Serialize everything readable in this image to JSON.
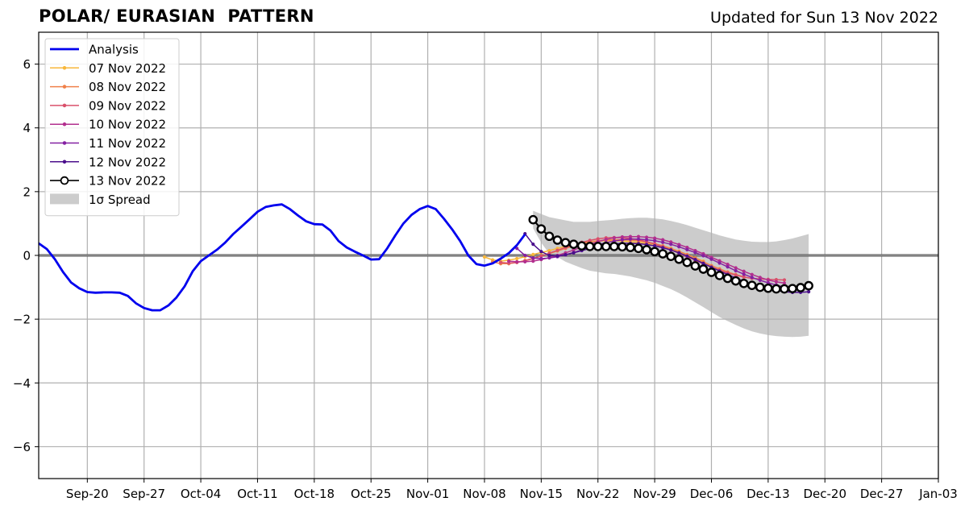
{
  "chart_data": {
    "type": "line",
    "title": "POLAR/ EURASIAN  PATTERN",
    "subtitle": "Updated for Sun 13 Nov 2022",
    "xlabel": "",
    "ylabel": "",
    "xlim": [
      "2022-09-14",
      "2023-01-03"
    ],
    "ylim": [
      -7,
      7
    ],
    "x_ticks": [
      "2022-09-20",
      "2022-09-27",
      "2022-10-04",
      "2022-10-11",
      "2022-10-18",
      "2022-10-25",
      "2022-11-01",
      "2022-11-08",
      "2022-11-15",
      "2022-11-22",
      "2022-11-29",
      "2022-12-06",
      "2022-12-13",
      "2022-12-20",
      "2022-12-27",
      "2023-01-03"
    ],
    "x_tick_labels": [
      "Sep-20",
      "Sep-27",
      "Oct-04",
      "Oct-11",
      "Oct-18",
      "Oct-25",
      "Nov-01",
      "Nov-08",
      "Nov-15",
      "Nov-22",
      "Nov-29",
      "Dec-06",
      "Dec-13",
      "Dec-20",
      "Dec-27",
      "Jan-03"
    ],
    "y_ticks": [
      -6,
      -4,
      -2,
      0,
      2,
      4,
      6
    ],
    "y_tick_labels": [
      "−6",
      "−4",
      "−2",
      "0",
      "2",
      "4",
      "6"
    ],
    "grid": true,
    "legend_position": "top-left",
    "zero_line": true,
    "analysis": {
      "name": "Analysis",
      "color": "#0000ee",
      "start_date": "2022-09-14",
      "values": [
        0.38,
        0.2,
        -0.12,
        -0.52,
        -0.85,
        -1.03,
        -1.15,
        -1.17,
        -1.16,
        -1.16,
        -1.17,
        -1.27,
        -1.5,
        -1.65,
        -1.72,
        -1.72,
        -1.57,
        -1.32,
        -0.97,
        -0.5,
        -0.18,
        0.0,
        0.18,
        0.4,
        0.67,
        0.9,
        1.13,
        1.37,
        1.52,
        1.57,
        1.6,
        1.45,
        1.25,
        1.07,
        0.98,
        0.97,
        0.78,
        0.45,
        0.25,
        0.12,
        0.0,
        -0.13,
        -0.12,
        0.22,
        0.63,
        1.0,
        1.27,
        1.45,
        1.55,
        1.45,
        1.15,
        0.82,
        0.45,
        0.0,
        -0.27,
        -0.32,
        -0.25,
        -0.1,
        0.07,
        0.32,
        0.66
      ]
    },
    "forecasts": [
      {
        "name": "07 Nov 2022",
        "color": "#f8b73a",
        "start_date": "2022-11-08",
        "values": [
          -0.05,
          -0.14,
          -0.18,
          -0.15,
          -0.1,
          -0.04,
          0.03,
          0.09,
          0.15,
          0.22,
          0.28,
          0.34,
          0.39,
          0.43,
          0.45,
          0.46,
          0.46,
          0.45,
          0.43,
          0.41,
          0.38,
          0.34,
          0.28,
          0.2,
          0.12,
          0.02,
          -0.08,
          -0.18
        ]
      },
      {
        "name": "08 Nov 2022",
        "color": "#f0804a",
        "start_date": "2022-11-09",
        "values": [
          -0.2,
          -0.26,
          -0.26,
          -0.22,
          -0.16,
          -0.09,
          -0.02,
          0.06,
          0.14,
          0.22,
          0.3,
          0.37,
          0.42,
          0.46,
          0.48,
          0.49,
          0.49,
          0.48,
          0.46,
          0.42,
          0.37,
          0.3,
          0.22,
          0.13,
          0.03,
          -0.08,
          -0.2,
          -0.32,
          -0.42,
          -0.52,
          -0.6,
          -0.67
        ]
      },
      {
        "name": "09 Nov 2022",
        "color": "#d9506b",
        "start_date": "2022-11-10",
        "values": [
          -0.22,
          -0.24,
          -0.22,
          -0.17,
          -0.1,
          -0.02,
          0.07,
          0.16,
          0.25,
          0.33,
          0.41,
          0.47,
          0.52,
          0.55,
          0.56,
          0.55,
          0.53,
          0.49,
          0.43,
          0.36,
          0.27,
          0.17,
          0.07,
          -0.04,
          -0.15,
          -0.26,
          -0.37,
          -0.46,
          -0.55,
          -0.62,
          -0.68,
          -0.72,
          -0.74,
          -0.75,
          -0.76,
          -0.77
        ]
      },
      {
        "name": "10 Nov 2022",
        "color": "#b22f8e",
        "start_date": "2022-11-11",
        "values": [
          -0.18,
          -0.2,
          -0.2,
          -0.18,
          -0.13,
          -0.07,
          0.0,
          0.08,
          0.17,
          0.26,
          0.35,
          0.43,
          0.5,
          0.55,
          0.58,
          0.59,
          0.59,
          0.57,
          0.54,
          0.49,
          0.42,
          0.34,
          0.25,
          0.15,
          0.05,
          -0.06,
          -0.17,
          -0.28,
          -0.39,
          -0.5,
          -0.6,
          -0.69,
          -0.77,
          -0.83,
          -0.87
        ]
      },
      {
        "name": "11 Nov 2022",
        "color": "#8420a2",
        "start_date": "2022-11-12",
        "values": [
          0.22,
          0.0,
          -0.08,
          -0.1,
          -0.08,
          -0.04,
          0.02,
          0.09,
          0.17,
          0.25,
          0.33,
          0.4,
          0.45,
          0.49,
          0.51,
          0.51,
          0.49,
          0.46,
          0.41,
          0.35,
          0.27,
          0.18,
          0.09,
          -0.01,
          -0.12,
          -0.24,
          -0.36,
          -0.48,
          -0.59,
          -0.69,
          -0.78,
          -0.86,
          -0.93,
          -0.99,
          -1.04,
          -1.08
        ]
      },
      {
        "name": "12 Nov 2022",
        "color": "#4b0f8c",
        "start_date": "2022-11-13",
        "values": [
          0.68,
          0.35,
          0.12,
          0.0,
          -0.02,
          0.02,
          0.08,
          0.15,
          0.22,
          0.28,
          0.33,
          0.36,
          0.38,
          0.38,
          0.37,
          0.34,
          0.3,
          0.24,
          0.17,
          0.08,
          -0.02,
          -0.13,
          -0.25,
          -0.37,
          -0.49,
          -0.6,
          -0.71,
          -0.81,
          -0.9,
          -0.98,
          -1.05,
          -1.1,
          -1.14,
          -1.16,
          -1.16,
          -1.14
        ]
      },
      {
        "name": "13 Nov 2022",
        "color": "#000000",
        "start_date": "2022-11-14",
        "values": [
          1.12,
          0.83,
          0.6,
          0.48,
          0.4,
          0.35,
          0.3,
          0.28,
          0.28,
          0.28,
          0.28,
          0.27,
          0.25,
          0.22,
          0.18,
          0.12,
          0.05,
          -0.03,
          -0.12,
          -0.22,
          -0.33,
          -0.43,
          -0.53,
          -0.63,
          -0.72,
          -0.8,
          -0.88,
          -0.94,
          -1.0,
          -1.03,
          -1.05,
          -1.05,
          -1.04,
          -1.01,
          -0.95
        ]
      }
    ],
    "spread": {
      "name": "1σ Spread",
      "color": "#cccccc",
      "start_date": "2022-11-14",
      "upper": [
        1.4,
        1.3,
        1.2,
        1.15,
        1.1,
        1.05,
        1.05,
        1.05,
        1.08,
        1.1,
        1.12,
        1.15,
        1.17,
        1.18,
        1.18,
        1.16,
        1.13,
        1.08,
        1.02,
        0.95,
        0.87,
        0.79,
        0.71,
        0.63,
        0.56,
        0.5,
        0.46,
        0.43,
        0.42,
        0.42,
        0.44,
        0.48,
        0.53,
        0.6,
        0.67
      ],
      "lower": [
        0.85,
        0.4,
        0.05,
        -0.05,
        -0.2,
        -0.3,
        -0.4,
        -0.48,
        -0.52,
        -0.56,
        -0.58,
        -0.62,
        -0.66,
        -0.72,
        -0.78,
        -0.86,
        -0.96,
        -1.06,
        -1.18,
        -1.32,
        -1.47,
        -1.62,
        -1.78,
        -1.93,
        -2.06,
        -2.18,
        -2.29,
        -2.38,
        -2.45,
        -2.5,
        -2.53,
        -2.55,
        -2.56,
        -2.55,
        -2.52
      ]
    }
  }
}
